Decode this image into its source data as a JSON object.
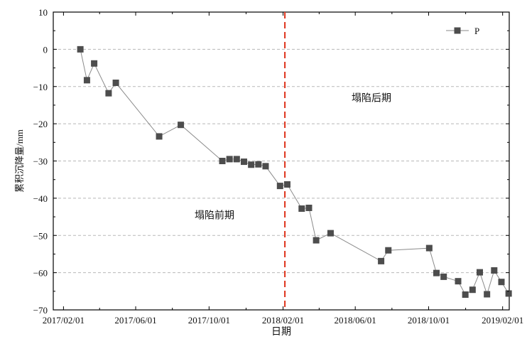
{
  "chart_data": {
    "type": "line",
    "xlabel": "日期",
    "ylabel": "累积沉降量/mm",
    "x_axis_type": "date",
    "xlim": [
      "2017-01-15",
      "2019-02-12"
    ],
    "ylim": [
      -70,
      10
    ],
    "x_ticks": [
      "2017/02/01",
      "2017/06/01",
      "2017/10/01",
      "2018/02/01",
      "2018/06/01",
      "2018/10/01",
      "2019/02/01"
    ],
    "y_ticks": [
      10,
      0,
      -10,
      -20,
      -30,
      -40,
      -50,
      -60,
      -70
    ],
    "grid": "horizontal dashed",
    "legend": {
      "position": "top-right",
      "entries": [
        "P"
      ]
    },
    "series": [
      {
        "name": "P",
        "color": "#4d4d4d",
        "marker": "square",
        "x": [
          "2017-03-01",
          "2017-03-12",
          "2017-03-24",
          "2017-04-17",
          "2017-04-29",
          "2017-07-10",
          "2017-08-15",
          "2017-10-23",
          "2017-11-04",
          "2017-11-16",
          "2017-11-28",
          "2017-12-10",
          "2017-12-22",
          "2018-01-03",
          "2018-01-27",
          "2018-02-08",
          "2018-03-04",
          "2018-03-16",
          "2018-03-28",
          "2018-04-21",
          "2018-07-14",
          "2018-07-26",
          "2018-10-02",
          "2018-10-14",
          "2018-10-26",
          "2018-11-19",
          "2018-12-01",
          "2018-12-13",
          "2018-12-25",
          "2019-01-06",
          "2019-01-18",
          "2019-01-30",
          "2019-02-11"
        ],
        "y": [
          0,
          -8.3,
          -3.8,
          -11.8,
          -9.0,
          -23.4,
          -20.3,
          -30.0,
          -29.5,
          -29.5,
          -30.2,
          -31.0,
          -30.9,
          -31.4,
          -36.7,
          -36.3,
          -42.8,
          -42.6,
          -51.3,
          -49.4,
          -56.9,
          -54.0,
          -53.4,
          -60.1,
          -61.1,
          -62.3,
          -65.9,
          -64.6,
          -59.9,
          -65.8,
          -59.4,
          -62.5,
          -65.6
        ]
      }
    ],
    "annotations": [
      {
        "type": "vline",
        "x": "2018-02-04",
        "color": "#e0402a",
        "style": "dashed"
      },
      {
        "type": "text",
        "text": "塌陷前期",
        "x": "2017-10-10",
        "y": -45.5
      },
      {
        "type": "text",
        "text": "塌陷后期",
        "x": "2018-06-28",
        "y": -14
      }
    ]
  }
}
